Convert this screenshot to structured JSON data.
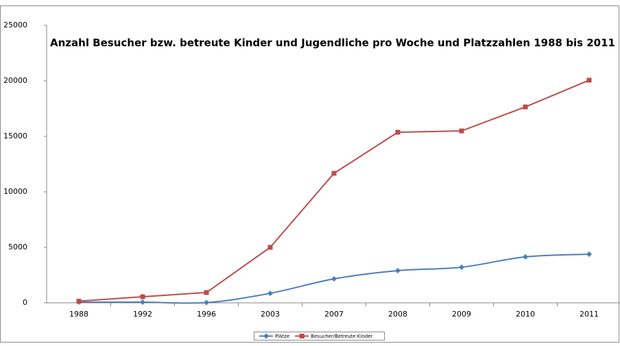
{
  "chart_data": {
    "type": "line",
    "title": "Anzahl  Besucher bzw. betreute Kinder  und Jugendliche  pro Woche  und Platzzahlen 1988 bis 2011",
    "categories": [
      "1988",
      "1992",
      "1996",
      "2003",
      "2007",
      "2008",
      "2009",
      "2010",
      "2011"
    ],
    "series": [
      {
        "name": "Plätze",
        "color": "#4a7ebb",
        "smooth": true,
        "marker": "diamond",
        "values": [
          60,
          60,
          20,
          860,
          2160,
          2900,
          3210,
          4140,
          4380
        ]
      },
      {
        "name": "Besucher/Betreute Kinder",
        "color": "#be4b48",
        "smooth": false,
        "marker": "square",
        "values": [
          150,
          550,
          930,
          5000,
          11670,
          15370,
          15490,
          17650,
          20060
        ]
      }
    ],
    "ylim": [
      0,
      25000
    ],
    "yticks": [
      0,
      5000,
      10000,
      15000,
      20000,
      25000
    ],
    "grid": false,
    "legend": "bottom"
  }
}
